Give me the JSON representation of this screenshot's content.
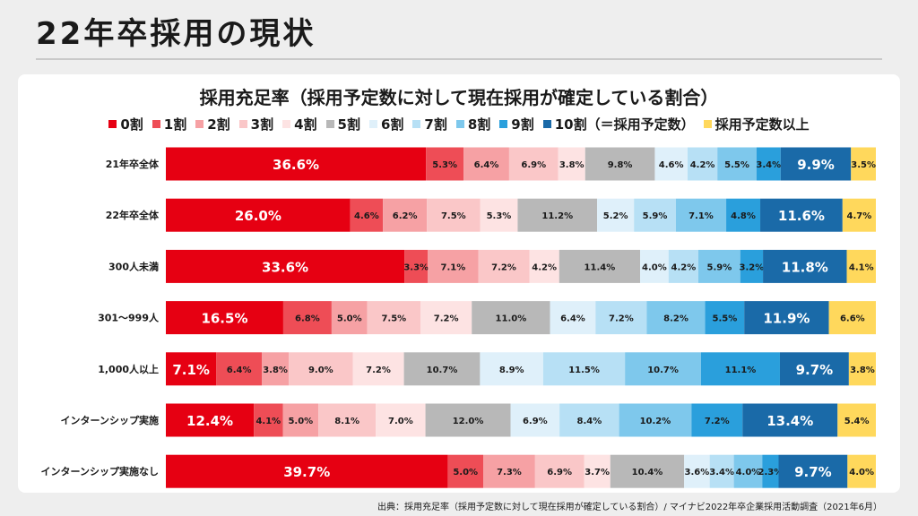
{
  "page": {
    "title": "22年卒採用の現状",
    "source": "出典：採用充足率（採用予定数に対して現在採用が確定している割合）/ マイナビ2022年卒企業採用活動調査（2021年6月）"
  },
  "chart_data": {
    "type": "bar",
    "orientation": "horizontal",
    "stacked": "100%",
    "title": "採用充足率（採用予定数に対して現在採用が確定している割合）",
    "legend_position": "top",
    "categories": [
      "21年卒全体",
      "22年卒全体",
      "300人未満",
      "301～999人",
      "1,000人以上",
      "インターンシップ実施",
      "インターンシップ実施なし"
    ],
    "series": [
      {
        "name": "0割",
        "color": "#e60012",
        "values": [
          36.6,
          26.0,
          33.6,
          16.5,
          7.1,
          12.4,
          39.7
        ]
      },
      {
        "name": "1割",
        "color": "#ee4d56",
        "values": [
          5.3,
          4.6,
          3.3,
          6.8,
          6.4,
          4.1,
          5.0
        ]
      },
      {
        "name": "2割",
        "color": "#f6a1a4",
        "values": [
          6.4,
          6.2,
          7.1,
          5.0,
          3.8,
          5.0,
          7.3
        ]
      },
      {
        "name": "3割",
        "color": "#fac7c8",
        "values": [
          6.9,
          7.5,
          7.2,
          7.5,
          9.0,
          8.1,
          6.9
        ]
      },
      {
        "name": "4割",
        "color": "#fde3e3",
        "values": [
          3.8,
          5.3,
          4.2,
          7.2,
          7.2,
          7.0,
          3.7
        ]
      },
      {
        "name": "5割",
        "color": "#b8b8b8",
        "values": [
          9.8,
          11.2,
          11.4,
          11.0,
          10.7,
          12.0,
          10.4
        ]
      },
      {
        "name": "6割",
        "color": "#dff0fa",
        "values": [
          4.6,
          5.2,
          4.0,
          6.4,
          8.9,
          6.9,
          3.6
        ]
      },
      {
        "name": "7割",
        "color": "#b7e0f5",
        "values": [
          4.2,
          5.9,
          4.2,
          7.2,
          11.5,
          8.4,
          3.4
        ]
      },
      {
        "name": "8割",
        "color": "#7ec8ec",
        "values": [
          5.5,
          7.1,
          5.9,
          8.2,
          10.7,
          10.2,
          4.0
        ]
      },
      {
        "name": "9割",
        "color": "#2a9fdc",
        "values": [
          3.4,
          4.8,
          3.2,
          5.5,
          11.1,
          7.2,
          2.3
        ]
      },
      {
        "name": "10割（＝採用予定数）",
        "color": "#1a6aa8",
        "values": [
          9.9,
          11.6,
          11.8,
          11.9,
          9.7,
          13.4,
          9.7
        ]
      },
      {
        "name": "採用予定数以上",
        "color": "#ffd85c",
        "values": [
          3.5,
          4.7,
          4.1,
          6.6,
          3.8,
          5.4,
          4.0
        ]
      }
    ],
    "data_labels": [
      [
        "36.6%",
        "5.3%",
        "6.4%",
        "6.9%",
        "3.8%",
        "9.8%",
        "4.6%",
        "4.2%",
        "5.5%",
        "3.4%",
        "9.9%",
        "3.5%"
      ],
      [
        "26.0%",
        "4.6%",
        "6.2%",
        "7.5%",
        "5.3%",
        "11.2%",
        "5.2%",
        "5.9%",
        "7.1%",
        "4.8%",
        "11.6%",
        "4.7%"
      ],
      [
        "33.6%",
        "3.3%",
        "7.1%",
        "7.2%",
        "4.2%",
        "11.4%",
        "4.0%",
        "4.2%",
        "5.9%",
        "3.2%",
        "11.8%",
        "4.1%"
      ],
      [
        "16.5%",
        "6.8%",
        "5.0%",
        "7.5%",
        "7.2%",
        "11.0%",
        "6.4%",
        "7.2%",
        "8.2%",
        "5.5%",
        "11.9%",
        "6.6%"
      ],
      [
        "7.1%",
        "6.4%",
        "3.8%",
        "9.0%",
        "7.2%",
        "10.7%",
        "8.9%",
        "11.5%",
        "10.7%",
        "11.1%",
        "9.7%",
        "3.8%"
      ],
      [
        "12.4%",
        "4.1%",
        "5.0%",
        "8.1%",
        "7.0%",
        "12.0%",
        "6.9%",
        "8.4%",
        "10.2%",
        "7.2%",
        "13.4%",
        "5.4%"
      ],
      [
        "39.7%",
        "5.0%",
        "7.3%",
        "6.9%",
        "3.7%",
        "10.4%",
        "3.6%",
        "3.4%",
        "4.0%",
        "2.3%",
        "9.7%",
        "4.0%"
      ]
    ],
    "xlim": [
      0,
      100
    ],
    "grid": false
  }
}
